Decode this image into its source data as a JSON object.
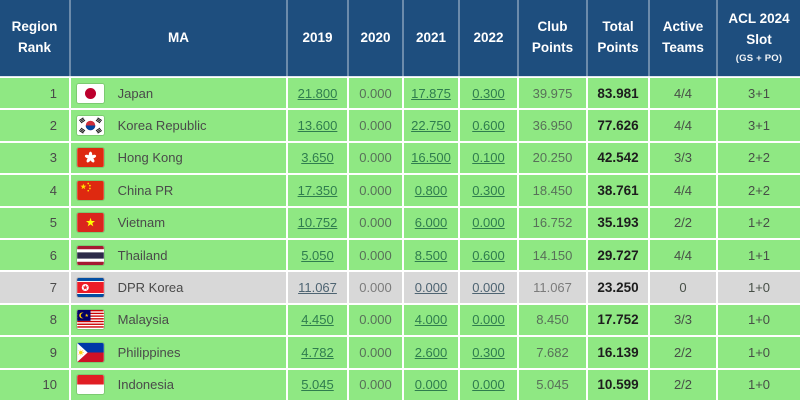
{
  "header": {
    "region_rank": "Region Rank",
    "ma": "MA",
    "y2019": "2019",
    "y2020": "2020",
    "y2021": "2021",
    "y2022": "2022",
    "club_points": "Club Points",
    "total_points": "Total Points",
    "active_teams": "Active Teams",
    "acl_slot": "ACL 2024 Slot",
    "acl_slot_sub": "(GS + PO)"
  },
  "colors": {
    "header_bg": "#1e4e7e",
    "row_green": "#8fe883",
    "row_gray": "#d8d8d8",
    "link_green": "#2f7d4e",
    "link_gray": "#4e6472",
    "total_text": "#1d1d1d"
  },
  "rows": [
    {
      "rank": "1",
      "flag": "japan",
      "ma": "Japan",
      "y2019": "21.800",
      "y2020": "0.000",
      "y2021": "17.875",
      "y2022": "0.300",
      "club": "39.975",
      "total": "83.981",
      "teams": "4/4",
      "slot": "3+1",
      "highlight": false
    },
    {
      "rank": "2",
      "flag": "korea-republic",
      "ma": "Korea Republic",
      "y2019": "13.600",
      "y2020": "0.000",
      "y2021": "22.750",
      "y2022": "0.600",
      "club": "36.950",
      "total": "77.626",
      "teams": "4/4",
      "slot": "3+1",
      "highlight": false
    },
    {
      "rank": "3",
      "flag": "hong-kong",
      "ma": "Hong Kong",
      "y2019": "3.650",
      "y2020": "0.000",
      "y2021": "16.500",
      "y2022": "0.100",
      "club": "20.250",
      "total": "42.542",
      "teams": "3/3",
      "slot": "2+2",
      "highlight": false
    },
    {
      "rank": "4",
      "flag": "china-pr",
      "ma": "China PR",
      "y2019": "17.350",
      "y2020": "0.000",
      "y2021": "0.800",
      "y2022": "0.300",
      "club": "18.450",
      "total": "38.761",
      "teams": "4/4",
      "slot": "2+2",
      "highlight": false
    },
    {
      "rank": "5",
      "flag": "vietnam",
      "ma": "Vietnam",
      "y2019": "10.752",
      "y2020": "0.000",
      "y2021": "6.000",
      "y2022": "0.000",
      "club": "16.752",
      "total": "35.193",
      "teams": "2/2",
      "slot": "1+2",
      "highlight": false
    },
    {
      "rank": "6",
      "flag": "thailand",
      "ma": "Thailand",
      "y2019": "5.050",
      "y2020": "0.000",
      "y2021": "8.500",
      "y2022": "0.600",
      "club": "14.150",
      "total": "29.727",
      "teams": "4/4",
      "slot": "1+1",
      "highlight": false
    },
    {
      "rank": "7",
      "flag": "dpr-korea",
      "ma": "DPR Korea",
      "y2019": "11.067",
      "y2020": "0.000",
      "y2021": "0.000",
      "y2022": "0.000",
      "club": "11.067",
      "total": "23.250",
      "teams": "0",
      "slot": "1+0",
      "highlight": true
    },
    {
      "rank": "8",
      "flag": "malaysia",
      "ma": "Malaysia",
      "y2019": "4.450",
      "y2020": "0.000",
      "y2021": "4.000",
      "y2022": "0.000",
      "club": "8.450",
      "total": "17.752",
      "teams": "3/3",
      "slot": "1+0",
      "highlight": false
    },
    {
      "rank": "9",
      "flag": "philippines",
      "ma": "Philippines",
      "y2019": "4.782",
      "y2020": "0.000",
      "y2021": "2.600",
      "y2022": "0.300",
      "club": "7.682",
      "total": "16.139",
      "teams": "2/2",
      "slot": "1+0",
      "highlight": false
    },
    {
      "rank": "10",
      "flag": "indonesia",
      "ma": "Indonesia",
      "y2019": "5.045",
      "y2020": "0.000",
      "y2021": "0.000",
      "y2022": "0.000",
      "club": "5.045",
      "total": "10.599",
      "teams": "2/2",
      "slot": "1+0",
      "highlight": false
    }
  ]
}
